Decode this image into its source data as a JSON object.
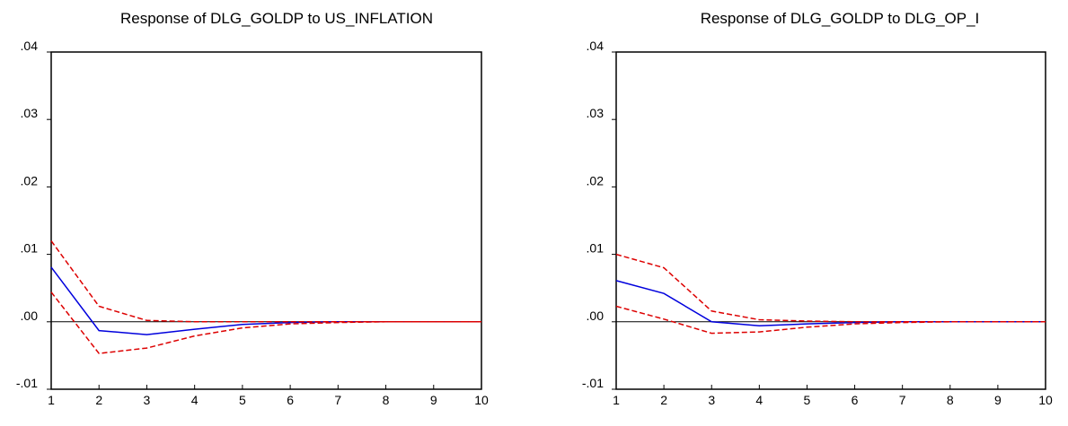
{
  "chart_data": [
    {
      "type": "line",
      "title": "Response of DLG_GOLDP to US_INFLATION",
      "xlabel": "",
      "ylabel": "",
      "x": [
        1,
        2,
        3,
        4,
        5,
        6,
        7,
        8,
        9,
        10
      ],
      "xlim": [
        1,
        10
      ],
      "ylim": [
        -0.01,
        0.04
      ],
      "yticks": [
        -0.01,
        0.0,
        0.01,
        0.02,
        0.03,
        0.04
      ],
      "ytick_labels": [
        "-.01",
        ".00",
        ".01",
        ".02",
        ".03",
        ".04"
      ],
      "xtick_labels": [
        "1",
        "2",
        "3",
        "4",
        "5",
        "6",
        "7",
        "8",
        "9",
        "10"
      ],
      "zero_line": true,
      "grid": false,
      "legend": "none",
      "series": [
        {
          "role": "response",
          "color": "#0000dd",
          "dash": "solid",
          "values": [
            0.0081,
            -0.0013,
            -0.0019,
            -0.0011,
            -0.0004,
            -0.0001,
            0.0,
            0.0,
            0.0,
            0.0
          ]
        },
        {
          "role": "upper",
          "color": "#dd0000",
          "dash": "dashed",
          "values": [
            0.012,
            0.0023,
            0.0002,
            0.0,
            0.0,
            0.0,
            0.0,
            0.0,
            0.0,
            0.0
          ]
        },
        {
          "role": "lower",
          "color": "#dd0000",
          "dash": "dashed",
          "values": [
            0.0044,
            -0.0047,
            -0.0039,
            -0.0021,
            -0.0009,
            -0.0003,
            -0.0001,
            0.0,
            0.0,
            0.0
          ]
        }
      ]
    },
    {
      "type": "line",
      "title": "Response of DLG_GOLDP to DLG_OP_I",
      "xlabel": "",
      "ylabel": "",
      "x": [
        1,
        2,
        3,
        4,
        5,
        6,
        7,
        8,
        9,
        10
      ],
      "xlim": [
        1,
        10
      ],
      "ylim": [
        -0.01,
        0.04
      ],
      "yticks": [
        -0.01,
        0.0,
        0.01,
        0.02,
        0.03,
        0.04
      ],
      "ytick_labels": [
        "-.01",
        ".00",
        ".01",
        ".02",
        ".03",
        ".04"
      ],
      "xtick_labels": [
        "1",
        "2",
        "3",
        "4",
        "5",
        "6",
        "7",
        "8",
        "9",
        "10"
      ],
      "zero_line": true,
      "grid": false,
      "legend": "none",
      "series": [
        {
          "role": "response",
          "color": "#0000dd",
          "dash": "solid",
          "values": [
            0.0061,
            0.0042,
            0.0,
            -0.0006,
            -0.0003,
            -0.0001,
            0.0,
            0.0,
            0.0,
            0.0
          ]
        },
        {
          "role": "upper",
          "color": "#dd0000",
          "dash": "dashed",
          "values": [
            0.01,
            0.008,
            0.0016,
            0.0003,
            0.0001,
            0.0,
            0.0,
            0.0,
            0.0,
            0.0
          ]
        },
        {
          "role": "lower",
          "color": "#dd0000",
          "dash": "dashed",
          "values": [
            0.0023,
            0.0004,
            -0.0017,
            -0.0015,
            -0.0008,
            -0.0003,
            -0.0001,
            0.0,
            0.0,
            0.0
          ]
        }
      ]
    }
  ]
}
